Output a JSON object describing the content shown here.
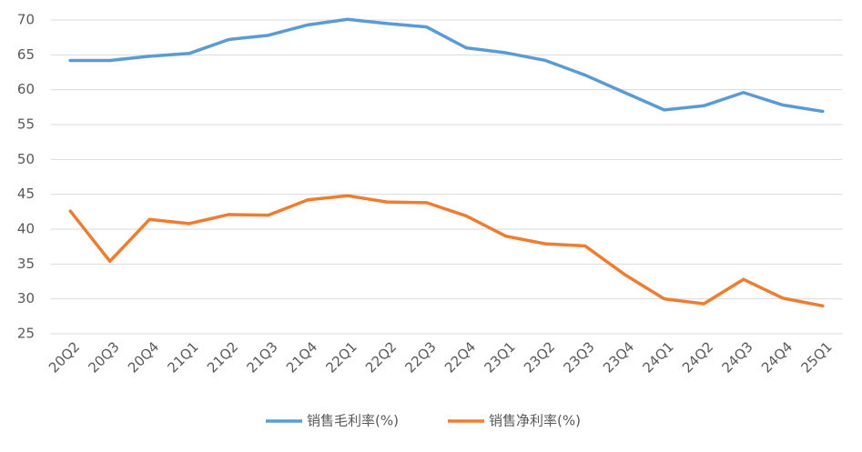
{
  "chart_data": {
    "type": "line",
    "categories": [
      "20Q2",
      "20Q3",
      "20Q4",
      "21Q1",
      "21Q2",
      "21Q3",
      "21Q4",
      "22Q1",
      "22Q2",
      "22Q3",
      "22Q4",
      "23Q1",
      "23Q2",
      "23Q3",
      "23Q4",
      "24Q1",
      "24Q2",
      "24Q3",
      "24Q4",
      "25Q1"
    ],
    "series": [
      {
        "name": "销售毛利率(%)",
        "color": "#5b9bd5",
        "values": [
          64.2,
          64.2,
          64.8,
          65.2,
          67.2,
          67.8,
          69.3,
          70.1,
          69.5,
          69.0,
          66.0,
          65.3,
          64.2,
          62.1,
          59.6,
          57.1,
          57.7,
          59.6,
          57.8,
          56.9
        ]
      },
      {
        "name": "销售净利率(%)",
        "color": "#ed7d31",
        "values": [
          42.6,
          35.4,
          41.4,
          40.8,
          42.1,
          42.0,
          44.2,
          44.8,
          43.9,
          43.8,
          41.9,
          39.0,
          37.9,
          37.6,
          33.5,
          30.0,
          29.3,
          32.8,
          30.1,
          29.0
        ]
      }
    ],
    "ylim": [
      25,
      70
    ],
    "yticks": [
      25,
      30,
      35,
      40,
      45,
      50,
      55,
      60,
      65,
      70
    ],
    "grid": true,
    "legend": "bottom"
  }
}
